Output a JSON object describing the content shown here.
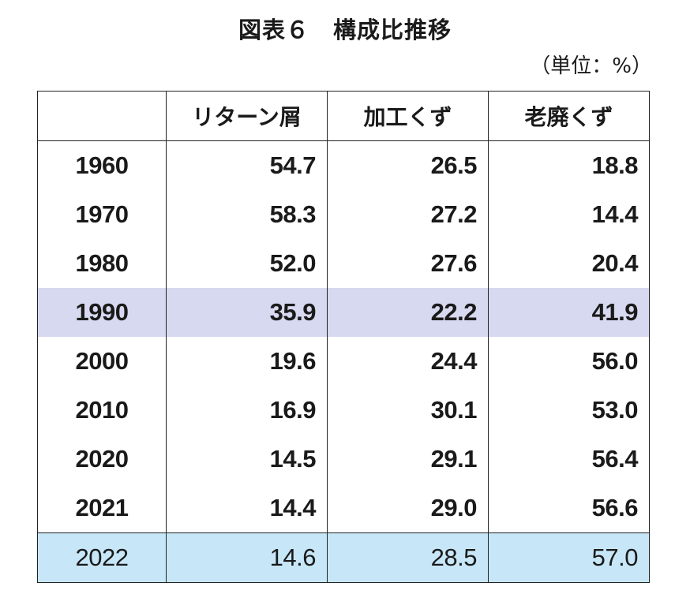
{
  "title": "図表６　構成比推移",
  "unit_label": "（単位：%）",
  "chart_data": {
    "type": "table",
    "title": "図表６　構成比推移",
    "unit": "（単位：%）",
    "columns": [
      "",
      "リターン屑",
      "加工くず",
      "老廃くず"
    ],
    "rows": [
      {
        "year": "1960",
        "values": [
          "54.7",
          "26.5",
          "18.8"
        ]
      },
      {
        "year": "1970",
        "values": [
          "58.3",
          "27.2",
          "14.4"
        ]
      },
      {
        "year": "1980",
        "values": [
          "52.0",
          "27.6",
          "20.4"
        ]
      },
      {
        "year": "1990",
        "values": [
          "35.9",
          "22.2",
          "41.9"
        ],
        "highlight": "#d6d9ef"
      },
      {
        "year": "2000",
        "values": [
          "19.6",
          "24.4",
          "56.0"
        ]
      },
      {
        "year": "2010",
        "values": [
          "16.9",
          "30.1",
          "53.0"
        ]
      },
      {
        "year": "2020",
        "values": [
          "14.5",
          "29.1",
          "56.4"
        ]
      },
      {
        "year": "2021",
        "values": [
          "14.4",
          "29.0",
          "56.6"
        ]
      },
      {
        "year": "2022",
        "values": [
          "14.6",
          "28.5",
          "57.0"
        ],
        "highlight": "#c7e7f8"
      }
    ]
  }
}
